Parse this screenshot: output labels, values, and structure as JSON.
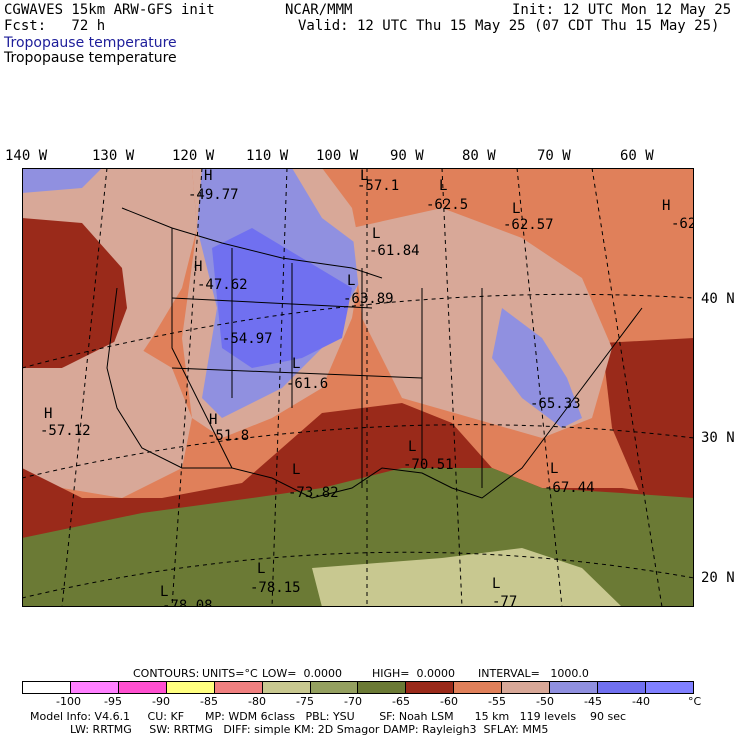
{
  "header": {
    "model_line": "CGWAVES 15km ARW-GFS init",
    "fcst_line": "Fcst:   72 h",
    "org": "NCAR/MMM",
    "init": "Init: 12 UTC Mon 12 May 25",
    "valid": "Valid: 12 UTC Thu 15 May 25 (07 CDT Thu 15 May 25)",
    "field_title_1": "Tropopause temperature",
    "field_title_2": "Tropopause temperature"
  },
  "longitude_labels": [
    "140 W",
    "130 W",
    "120 W",
    "110 W",
    "100 W",
    "90 W",
    "80 W",
    "70 W",
    "60 W"
  ],
  "latitude_labels": [
    "40 N",
    "30 N",
    "20 N"
  ],
  "map_labels": [
    {
      "mark": "H",
      "value": "-49.77"
    },
    {
      "mark": "L",
      "value": "-57.1"
    },
    {
      "mark": "L",
      "value": "-62.5"
    },
    {
      "mark": "L",
      "value": "-62.57"
    },
    {
      "mark": "H",
      "value": "-62"
    },
    {
      "mark": "L",
      "value": "-61.84"
    },
    {
      "mark": "H",
      "value": "-47.62"
    },
    {
      "mark": "L",
      "value": "-63.89"
    },
    {
      "mark": "",
      "value": "-54.97"
    },
    {
      "mark": "L",
      "value": "-61.6"
    },
    {
      "mark": "H",
      "value": "-57.12"
    },
    {
      "mark": "H",
      "value": "-51.8"
    },
    {
      "mark": "",
      "value": "-65.33"
    },
    {
      "mark": "L",
      "value": "-70.51"
    },
    {
      "mark": "L",
      "value": "-67.44"
    },
    {
      "mark": "L",
      "value": "-73.82"
    },
    {
      "mark": "L",
      "value": "-78.15"
    },
    {
      "mark": "L",
      "value": "-78.08"
    },
    {
      "mark": "L",
      "value": "-77"
    }
  ],
  "contour_info": {
    "contours": "CONTOURS:",
    "units": "UNITS=°C",
    "low": "LOW=  0.0000",
    "high": "HIGH=  0.0000",
    "interval": "INTERVAL=   1000.0"
  },
  "colorbar": {
    "colors": [
      "#ffffff",
      "#ff80ff",
      "#ff50d0",
      "#ffff80",
      "#f08080",
      "#c8c890",
      "#94a060",
      "#6b7a35",
      "#9a2a1a",
      "#e0805a",
      "#d8a898",
      "#9090e0",
      "#7070f0",
      "#8080ff"
    ],
    "labels": [
      "-100",
      "-95",
      "-90",
      "-85",
      "-80",
      "-75",
      "-70",
      "-65",
      "-60",
      "-55",
      "-50",
      "-45",
      "-40"
    ],
    "unit": "°C"
  },
  "map_colors": {
    "ocean_south": "#6b7a35",
    "warm_red": "#9a2a1a",
    "orange": "#e0805a",
    "pink": "#d8a898",
    "lavender": "#9090e0",
    "blue": "#7070f0",
    "olive_light": "#c8c890"
  },
  "footer": {
    "line1": "Model Info: V4.6.1     CU: KF      MP: WDM 6class   PBL: YSU       SF: Noah LSM      15 km   119 levels    90 sec",
    "line2": "LW: RRTMG     SW: RRTMG   DIFF: simple KM: 2D Smagor DAMP: Rayleigh3  SFLAY: MM5"
  }
}
